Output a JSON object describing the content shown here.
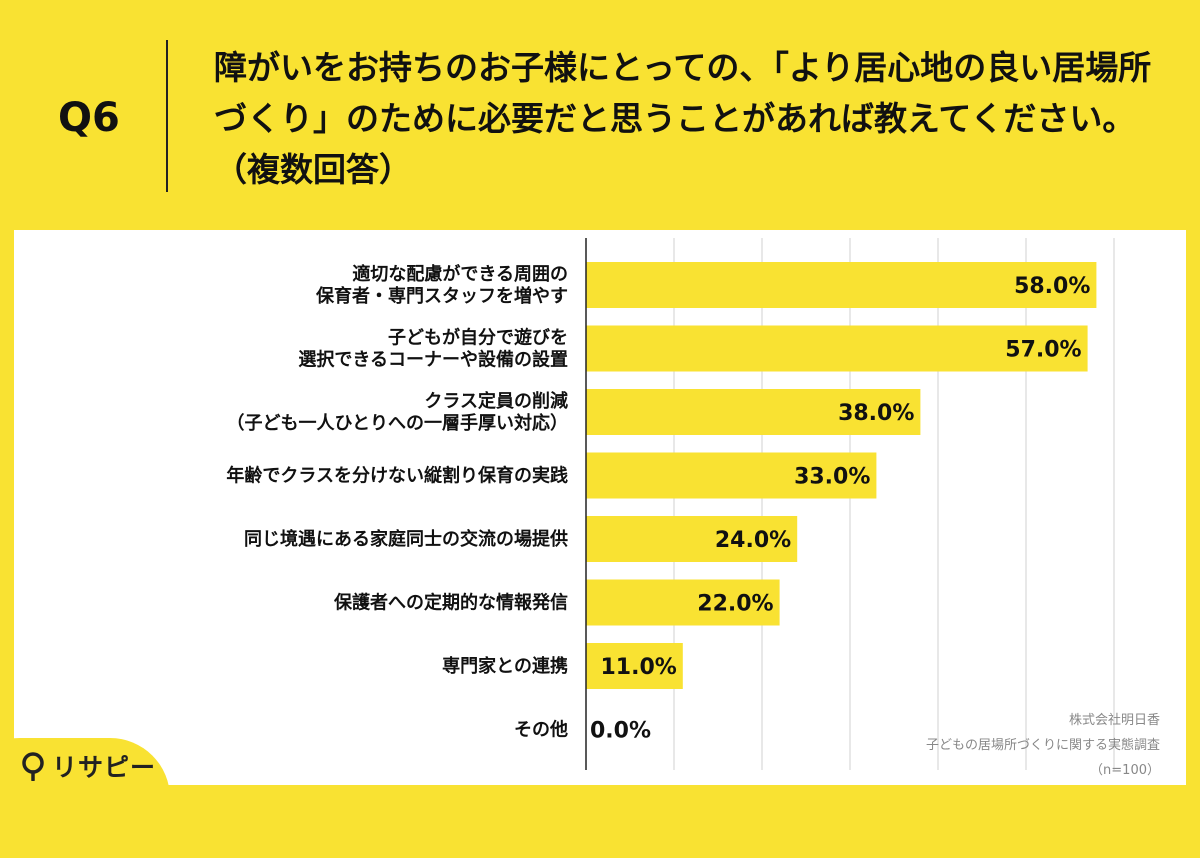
{
  "header": {
    "question_number": "Q6",
    "title": "障がいをお持ちのお子様にとっての、「より居心地の良い居場所づくり」のために必要だと思うことがあれば教えてください。（複数回答）"
  },
  "chart_data": {
    "type": "bar",
    "orientation": "horizontal",
    "categories": [
      "適切な配慮ができる周囲の\n保育者・専門スタッフを増やす",
      "子どもが自分で遊びを\n選択できるコーナーや設備の設置",
      "クラス定員の削減\n（子ども一人ひとりへの一層手厚い対応）",
      "年齢でクラスを分けない縦割り保育の実践",
      "同じ境遇にある家庭同士の交流の場提供",
      "保護者への定期的な情報発信",
      "専門家との連携",
      "その他"
    ],
    "values": [
      58.0,
      57.0,
      38.0,
      33.0,
      24.0,
      22.0,
      11.0,
      0.0
    ],
    "data_labels": [
      "58.0%",
      "57.0%",
      "38.0%",
      "33.0%",
      "24.0%",
      "22.0%",
      "11.0%",
      "0.0%"
    ],
    "xlim": [
      0,
      60
    ],
    "grid": true,
    "bar_color": "#F9E232"
  },
  "source": {
    "company": "株式会社明日香",
    "survey": "子どもの居場所づくりに関する実態調査",
    "sample": "（n=100）"
  },
  "logo": {
    "text": "リサピー",
    "icon": "pin-icon"
  }
}
